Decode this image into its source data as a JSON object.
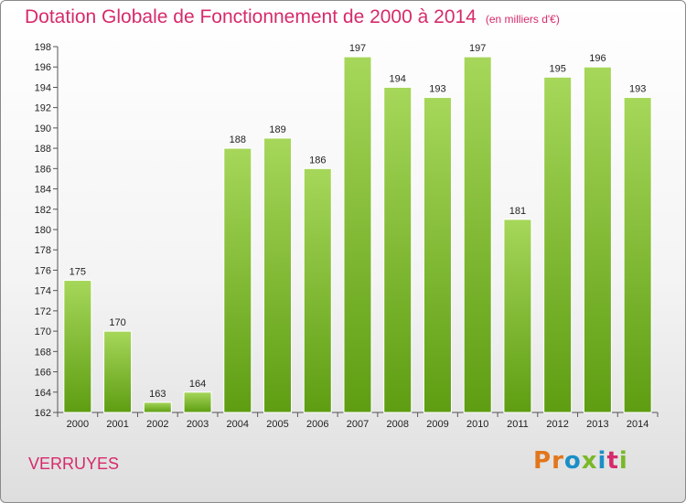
{
  "title": "Dotation Globale de Fonctionnement de 2000 à 2014",
  "subtitle": "(en milliers d'€)",
  "commune": "VERRUYES",
  "logo": {
    "text": "Proxiti",
    "letter_colors": [
      "#e2761b",
      "#e2761b",
      "#1a8fc7",
      "#7ab82a",
      "#1a8fc7",
      "#d62a6b",
      "#7ab82a"
    ]
  },
  "colors": {
    "title": "#d62a6b",
    "bar_top": "#a6d75a",
    "bar_bottom": "#5e9d12",
    "grid": "#bbbbbb"
  },
  "chart_data": {
    "type": "bar",
    "categories": [
      "2000",
      "2001",
      "2002",
      "2003",
      "2004",
      "2005",
      "2006",
      "2007",
      "2008",
      "2009",
      "2010",
      "2011",
      "2012",
      "2013",
      "2014"
    ],
    "values": [
      175,
      170,
      163,
      164,
      188,
      189,
      186,
      197,
      194,
      193,
      197,
      181,
      195,
      196,
      193
    ],
    "title": "Dotation Globale de Fonctionnement de 2000 à 2014",
    "xlabel": "",
    "ylabel": "",
    "ylim": [
      162,
      198
    ],
    "yticks": [
      162,
      164,
      166,
      168,
      170,
      172,
      174,
      176,
      178,
      180,
      182,
      184,
      186,
      188,
      190,
      192,
      194,
      196,
      198
    ],
    "grid": false,
    "data_labels": true
  }
}
